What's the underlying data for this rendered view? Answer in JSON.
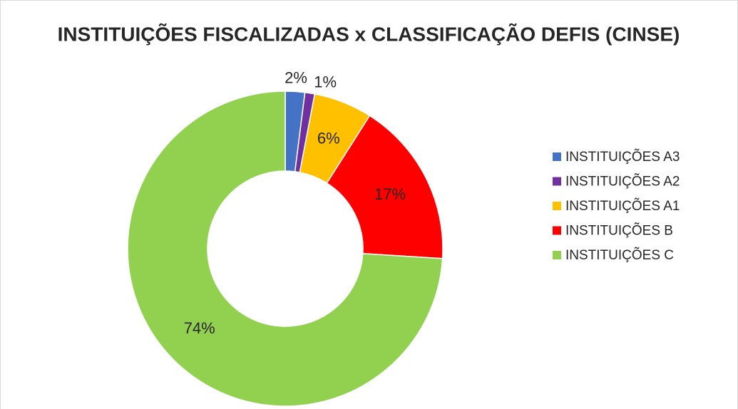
{
  "chart_data": {
    "type": "donut",
    "title": "INSTITUIÇÕES FISCALIZADAS x CLASSIFICAÇÃO DEFIS (CINSE)",
    "categories": [
      "INSTITUIÇÕES A3",
      "INSTITUIÇÕES A2",
      "INSTITUIÇÕES A1",
      "INSTITUIÇÕES B",
      "INSTITUIÇÕES C"
    ],
    "values": [
      2,
      1,
      6,
      17,
      74
    ],
    "value_labels": [
      "2%",
      "1%",
      "6%",
      "17%",
      "74%"
    ],
    "colors": [
      "#4472c4",
      "#7030a0",
      "#ffc000",
      "#ff0000",
      "#92d050"
    ],
    "legend": "right"
  }
}
